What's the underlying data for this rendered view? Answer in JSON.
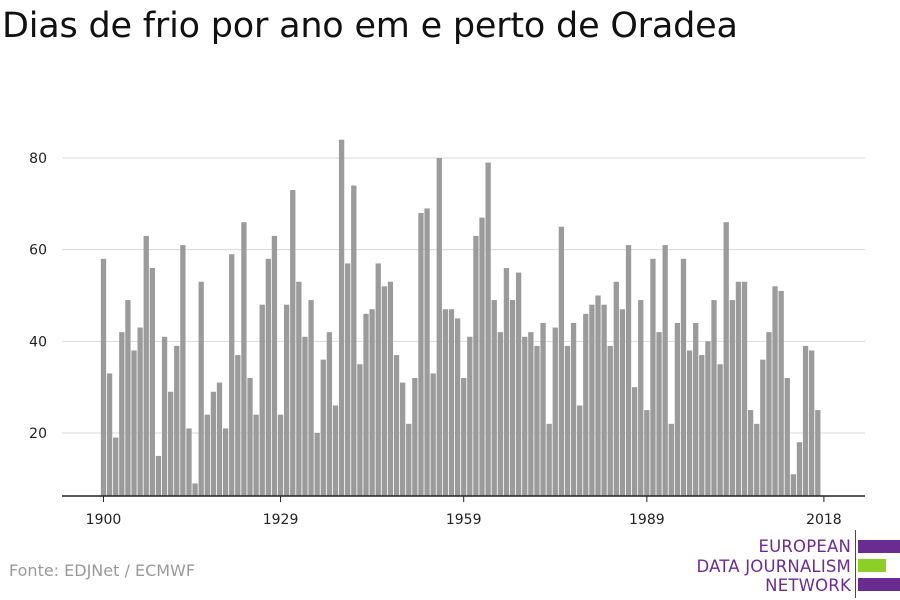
{
  "title": "Dias de frio por ano em e perto de Oradea",
  "source": "Fonte: EDJNet / ECMWF",
  "logo": {
    "line1": "EUROPEAN",
    "line2": "DATA JOURNALISM",
    "line3": "NETWORK"
  },
  "colors": {
    "bar": "#9b9b9b",
    "grid": "#d9d9d9",
    "axis": "#222222",
    "logo_purple": "#6b2c91",
    "logo_green": "#8ccf27",
    "source_text": "#9a9a9a"
  },
  "chart_data": {
    "type": "bar",
    "title": "Dias de frio por ano em e perto de Oradea",
    "xlabel": "",
    "ylabel": "",
    "x_start": 1900,
    "x_ticks": [
      1900,
      1929,
      1959,
      1989,
      2018
    ],
    "y_ticks": [
      20,
      40,
      60,
      80
    ],
    "ylim": [
      6.5,
      88
    ],
    "grid": true,
    "values": [
      58,
      33,
      19,
      42,
      49,
      38,
      43,
      63,
      56,
      15,
      41,
      29,
      39,
      61,
      21,
      9,
      53,
      24,
      29,
      31,
      21,
      59,
      37,
      66,
      32,
      24,
      48,
      58,
      63,
      24,
      48,
      73,
      53,
      41,
      49,
      20,
      36,
      42,
      26,
      84,
      57,
      74,
      35,
      46,
      47,
      57,
      52,
      53,
      37,
      31,
      22,
      32,
      68,
      69,
      33,
      80,
      47,
      47,
      45,
      32,
      41,
      63,
      67,
      79,
      49,
      42,
      56,
      49,
      55,
      41,
      42,
      39,
      44,
      22,
      43,
      65,
      39,
      44,
      26,
      46,
      48,
      50,
      48,
      39,
      53,
      47,
      61,
      30,
      49,
      25,
      58,
      42,
      61,
      22,
      44,
      58,
      38,
      44,
      37,
      40,
      49,
      35,
      66,
      49,
      53,
      53,
      25,
      22,
      36,
      42,
      52,
      51,
      32,
      11,
      18,
      39,
      38,
      25
    ]
  }
}
